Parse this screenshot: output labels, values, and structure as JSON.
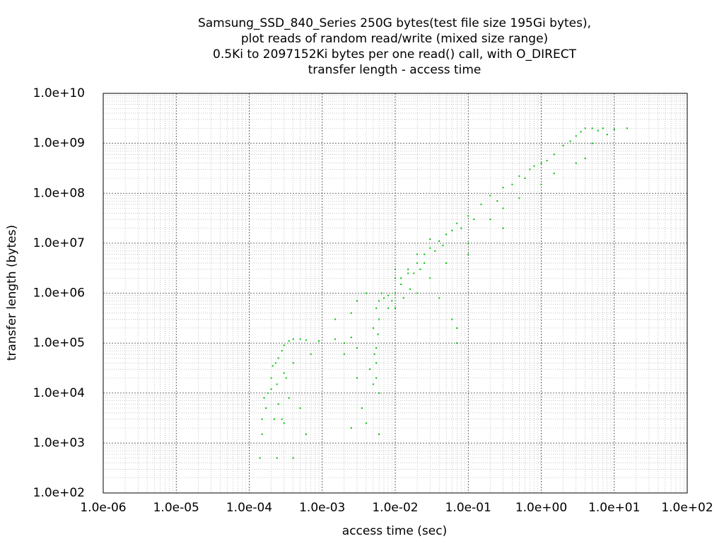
{
  "chart_data": {
    "type": "scatter",
    "title": [
      "Samsung_SSD_840_Series 250G bytes(test file size 195Gi bytes),",
      "plot reads of random read/write (mixed size range)",
      "0.5Ki to 2097152Ki bytes per one read() call, with O_DIRECT",
      "transfer length - access time"
    ],
    "x_label": "access time (sec)",
    "y_label": "transfer length (bytes)",
    "log_x": true,
    "log_y": true,
    "grid": true,
    "minor_grid": true,
    "color": "#00c000",
    "xlim": [
      1e-06,
      100
    ],
    "ylim": [
      100,
      10000000000.0
    ],
    "xticks": [
      {
        "value": 1e-06,
        "label": "1.0e-06"
      },
      {
        "value": 1e-05,
        "label": "1.0e-05"
      },
      {
        "value": 0.0001,
        "label": "1.0e-04"
      },
      {
        "value": 0.001,
        "label": "1.0e-03"
      },
      {
        "value": 0.01,
        "label": "1.0e-02"
      },
      {
        "value": 0.1,
        "label": "1.0e-01"
      },
      {
        "value": 1,
        "label": "1.0e+00"
      },
      {
        "value": 10,
        "label": "1.0e+01"
      },
      {
        "value": 100,
        "label": "1.0e+02"
      }
    ],
    "yticks": [
      {
        "value": 100,
        "label": "1.0e+02"
      },
      {
        "value": 1000,
        "label": "1.0e+03"
      },
      {
        "value": 10000,
        "label": "1.0e+04"
      },
      {
        "value": 100000,
        "label": "1.0e+05"
      },
      {
        "value": 1000000,
        "label": "1.0e+06"
      },
      {
        "value": 10000000,
        "label": "1.0e+07"
      },
      {
        "value": 100000000,
        "label": "1.0e+08"
      },
      {
        "value": 1000000000,
        "label": "1.0e+09"
      },
      {
        "value": 10000000000,
        "label": "1.0e+10"
      }
    ],
    "x": [
      0.00015,
      0.00015,
      0.00016,
      0.00017,
      0.00018,
      0.0002,
      0.00021,
      0.00023,
      0.00025,
      0.00028,
      0.0003,
      0.00035,
      0.0004,
      0.0005,
      0.0006,
      0.00022,
      0.00025,
      0.0003,
      0.0002,
      0.00024,
      0.0003,
      0.0004,
      0.00014,
      0.00024,
      0.0004,
      0.0006,
      0.0005,
      0.00035,
      0.00028,
      0.00032,
      0.0007,
      0.0009,
      0.0015,
      0.002,
      0.0025,
      0.003,
      0.002,
      0.0015,
      0.0025,
      0.003,
      0.004,
      0.0035,
      0.0025,
      0.004,
      0.003,
      0.0045,
      0.005,
      0.0055,
      0.0055,
      0.0055,
      0.0058,
      0.006,
      0.005,
      0.0055,
      0.006,
      0.0065,
      0.0052,
      0.006,
      0.006,
      0.007,
      0.008,
      0.01,
      0.01,
      0.012,
      0.015,
      0.02,
      0.025,
      0.03,
      0.04,
      0.05,
      0.07,
      0.1,
      0.15,
      0.2,
      0.3,
      0.5,
      0.7,
      1,
      1.5,
      2,
      3,
      4,
      5,
      7,
      10,
      15,
      0.01,
      0.02,
      0.03,
      0.05,
      0.1,
      0.2,
      0.3,
      0.5,
      1,
      1.5,
      3,
      4,
      5,
      8,
      0.07,
      0.07,
      0.04,
      0.06,
      0.1,
      0.3,
      0.01,
      0.02,
      0.03,
      0.015,
      0.008,
      0.009,
      0.012,
      0.018,
      0.025,
      0.035,
      0.045,
      0.06,
      0.08,
      0.12,
      0.25,
      0.4,
      0.6,
      0.8,
      1.2,
      2.5,
      3.5,
      6,
      0.013,
      0.016,
      0.022
    ],
    "values": [
      3000,
      1500,
      8000,
      5000,
      10000,
      20000,
      35000,
      40000,
      50000,
      70000,
      90000,
      110000,
      120000,
      120000,
      115000,
      3000,
      6000,
      2500,
      12000,
      15000,
      25000,
      40000,
      500,
      500,
      500,
      1500,
      5000,
      8000,
      3000,
      20000,
      60000,
      110000,
      120000,
      100000,
      130000,
      80000,
      60000,
      300000,
      400000,
      700000,
      1000000,
      5000,
      2000,
      2500,
      20000,
      30000,
      15000,
      20000,
      40000,
      80000,
      150000,
      300000,
      200000,
      500000,
      700000,
      1000000,
      60000,
      10000,
      1500,
      800000,
      900000,
      1000000,
      2000000,
      2000000,
      3000000,
      4000000,
      6000000,
      8000000,
      11000000,
      15000000,
      25000000,
      35000000,
      60000000,
      90000000,
      130000000,
      220000000,
      300000000,
      400000000,
      600000000,
      900000000,
      1400000000,
      2000000000,
      2000000000,
      2000000000,
      1900000000,
      2000000000,
      500000,
      1000000,
      2000000,
      4000000,
      10000000,
      30000000,
      50000000,
      80000000,
      150000000,
      250000000,
      400000000,
      500000000,
      1000000000,
      1500000000,
      200000,
      100000,
      800000,
      300000,
      6000000,
      20000000,
      3000000,
      6000000,
      12000000,
      2500000,
      500000,
      700000,
      1500000,
      2500000,
      4000000,
      7000000,
      9000000,
      18000000,
      20000000,
      30000000,
      70000000,
      150000000,
      200000000,
      350000000,
      450000000,
      1100000000,
      1700000000,
      1800000000,
      800000,
      1200000,
      3000000
    ]
  }
}
